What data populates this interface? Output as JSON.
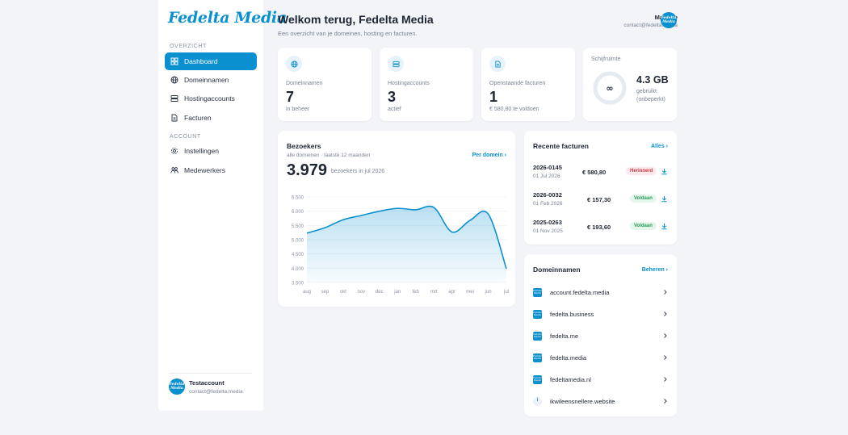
{
  "sidebar": {
    "logo": "Fedelta Media",
    "section_overview": "OVERZICHT",
    "section_account": "ACCOUNT",
    "items": [
      {
        "label": "Dashboard",
        "icon": "dashboard-icon",
        "active": true
      },
      {
        "label": "Domeinnamen",
        "icon": "globe-icon"
      },
      {
        "label": "Hostingaccounts",
        "icon": "server-icon"
      },
      {
        "label": "Facturen",
        "icon": "document-icon"
      },
      {
        "label": "Instellingen",
        "icon": "gear-icon"
      },
      {
        "label": "Medewerkers",
        "icon": "users-icon"
      }
    ],
    "user": {
      "name": "Testaccount",
      "email": "contact@fedelta.media",
      "avatar_text": "Fedelta Media"
    }
  },
  "header": {
    "title": "Welkom terug, Fedelta Media",
    "subtitle": "Een overzicht van je domeinen, hosting en facturen.",
    "user_name": "Maurice",
    "user_email": "contact@fedelta.media",
    "avatar_text": "Fedelta Media"
  },
  "stats": [
    {
      "label": "Domeinnamen",
      "value": "7",
      "sub": "in beheer",
      "icon": "globe-icon"
    },
    {
      "label": "Hostingaccounts",
      "value": "3",
      "sub": "actief",
      "icon": "server-icon"
    },
    {
      "label": "Openstaande facturen",
      "value": "1",
      "sub": "€ 580,80 te voldoen",
      "icon": "document-icon"
    }
  ],
  "disk": {
    "label": "Schijfruimte",
    "ring_text": "∞",
    "value": "4.3 GB",
    "sub1": "gebruikt",
    "sub2": "(onbeperkt)"
  },
  "visitors": {
    "title": "Bezoekers",
    "subtitle": "alle domeinen · laatste 12 maanden",
    "link": "Per domein ›",
    "total": "3.979",
    "total_sub": "bezoekers in jul 2026"
  },
  "chart_data": {
    "type": "area",
    "x": [
      "aug",
      "sep",
      "okt",
      "nov",
      "dec",
      "jan",
      "feb",
      "mrt",
      "apr",
      "mei",
      "jun",
      "jul"
    ],
    "y_tick_labels": [
      "6.500",
      "6.000",
      "5.500",
      "5.000",
      "4.500",
      "4.000",
      "3.500"
    ],
    "ylim": [
      3500,
      6500
    ],
    "series": [
      {
        "values": [
          5230,
          5420,
          5700,
          5850,
          6000,
          6100,
          6050,
          6130,
          5270,
          5680,
          5900,
          3979
        ]
      }
    ],
    "grid": true,
    "color": "#0a8fcf"
  },
  "invoices": {
    "title": "Recente facturen",
    "link": "Alles ›",
    "rows": [
      {
        "number": "2026-0145",
        "date": "01 Jul 2026",
        "amount": "€ 580,80",
        "status": "Herinnerd",
        "status_type": "warn"
      },
      {
        "number": "2026-0032",
        "date": "01 Feb 2026",
        "amount": "€ 157,30",
        "status": "Voldaan",
        "status_type": "ok"
      },
      {
        "number": "2025-0263",
        "date": "01 Nov 2025",
        "amount": "€ 193,60",
        "status": "Voldaan",
        "status_type": "ok"
      }
    ]
  },
  "domains": {
    "title": "Domeinnamen",
    "link": "Beheren ›",
    "rows": [
      {
        "name": "account.fedelta.media",
        "favicon_text": "Fedelta Media"
      },
      {
        "name": "fedelta.business",
        "favicon_text": "Fedelta Media"
      },
      {
        "name": "fedelta.me",
        "favicon_text": "Fedelta Media"
      },
      {
        "name": "fedelta.media",
        "favicon_text": "Fedelta Media"
      },
      {
        "name": "fedeltamedia.nl",
        "favicon_text": "Fedelta Media"
      },
      {
        "name": "ikwileensnellere.website",
        "favicon_text": "i"
      }
    ]
  },
  "colors": {
    "accent": "#0a8fcf",
    "background": "#f2f4f8",
    "warn": "#d2394a",
    "ok": "#2b9a58"
  }
}
